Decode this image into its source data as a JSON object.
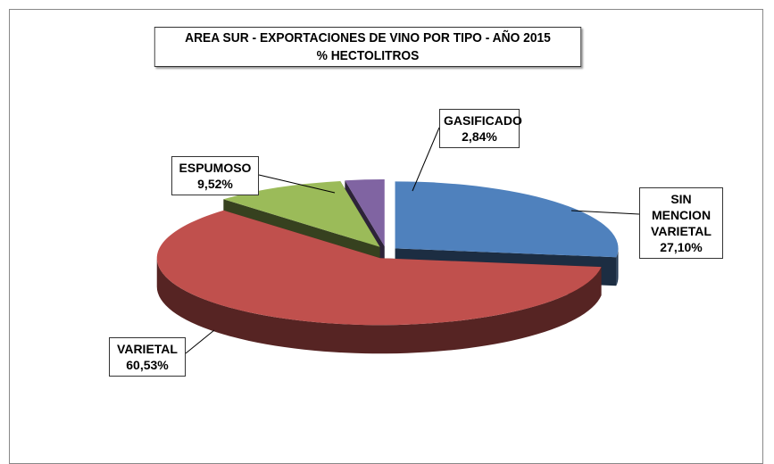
{
  "chart_data": {
    "type": "pie",
    "title": "AREA SUR - EXPORTACIONES DE VINO POR TIPO - AÑO 2015",
    "subtitle": "% HECTOLITROS",
    "categories": [
      "SIN MENCION VARIETAL",
      "VARIETAL",
      "ESPUMOSO",
      "GASIFICADO"
    ],
    "values": [
      27.1,
      60.53,
      9.52,
      2.84
    ],
    "value_labels": [
      "27,10%",
      "60,53%",
      "9,52%",
      "2,84%"
    ],
    "colors": [
      "#4f81bd",
      "#c0504d",
      "#9bbb59",
      "#8064a2"
    ]
  }
}
